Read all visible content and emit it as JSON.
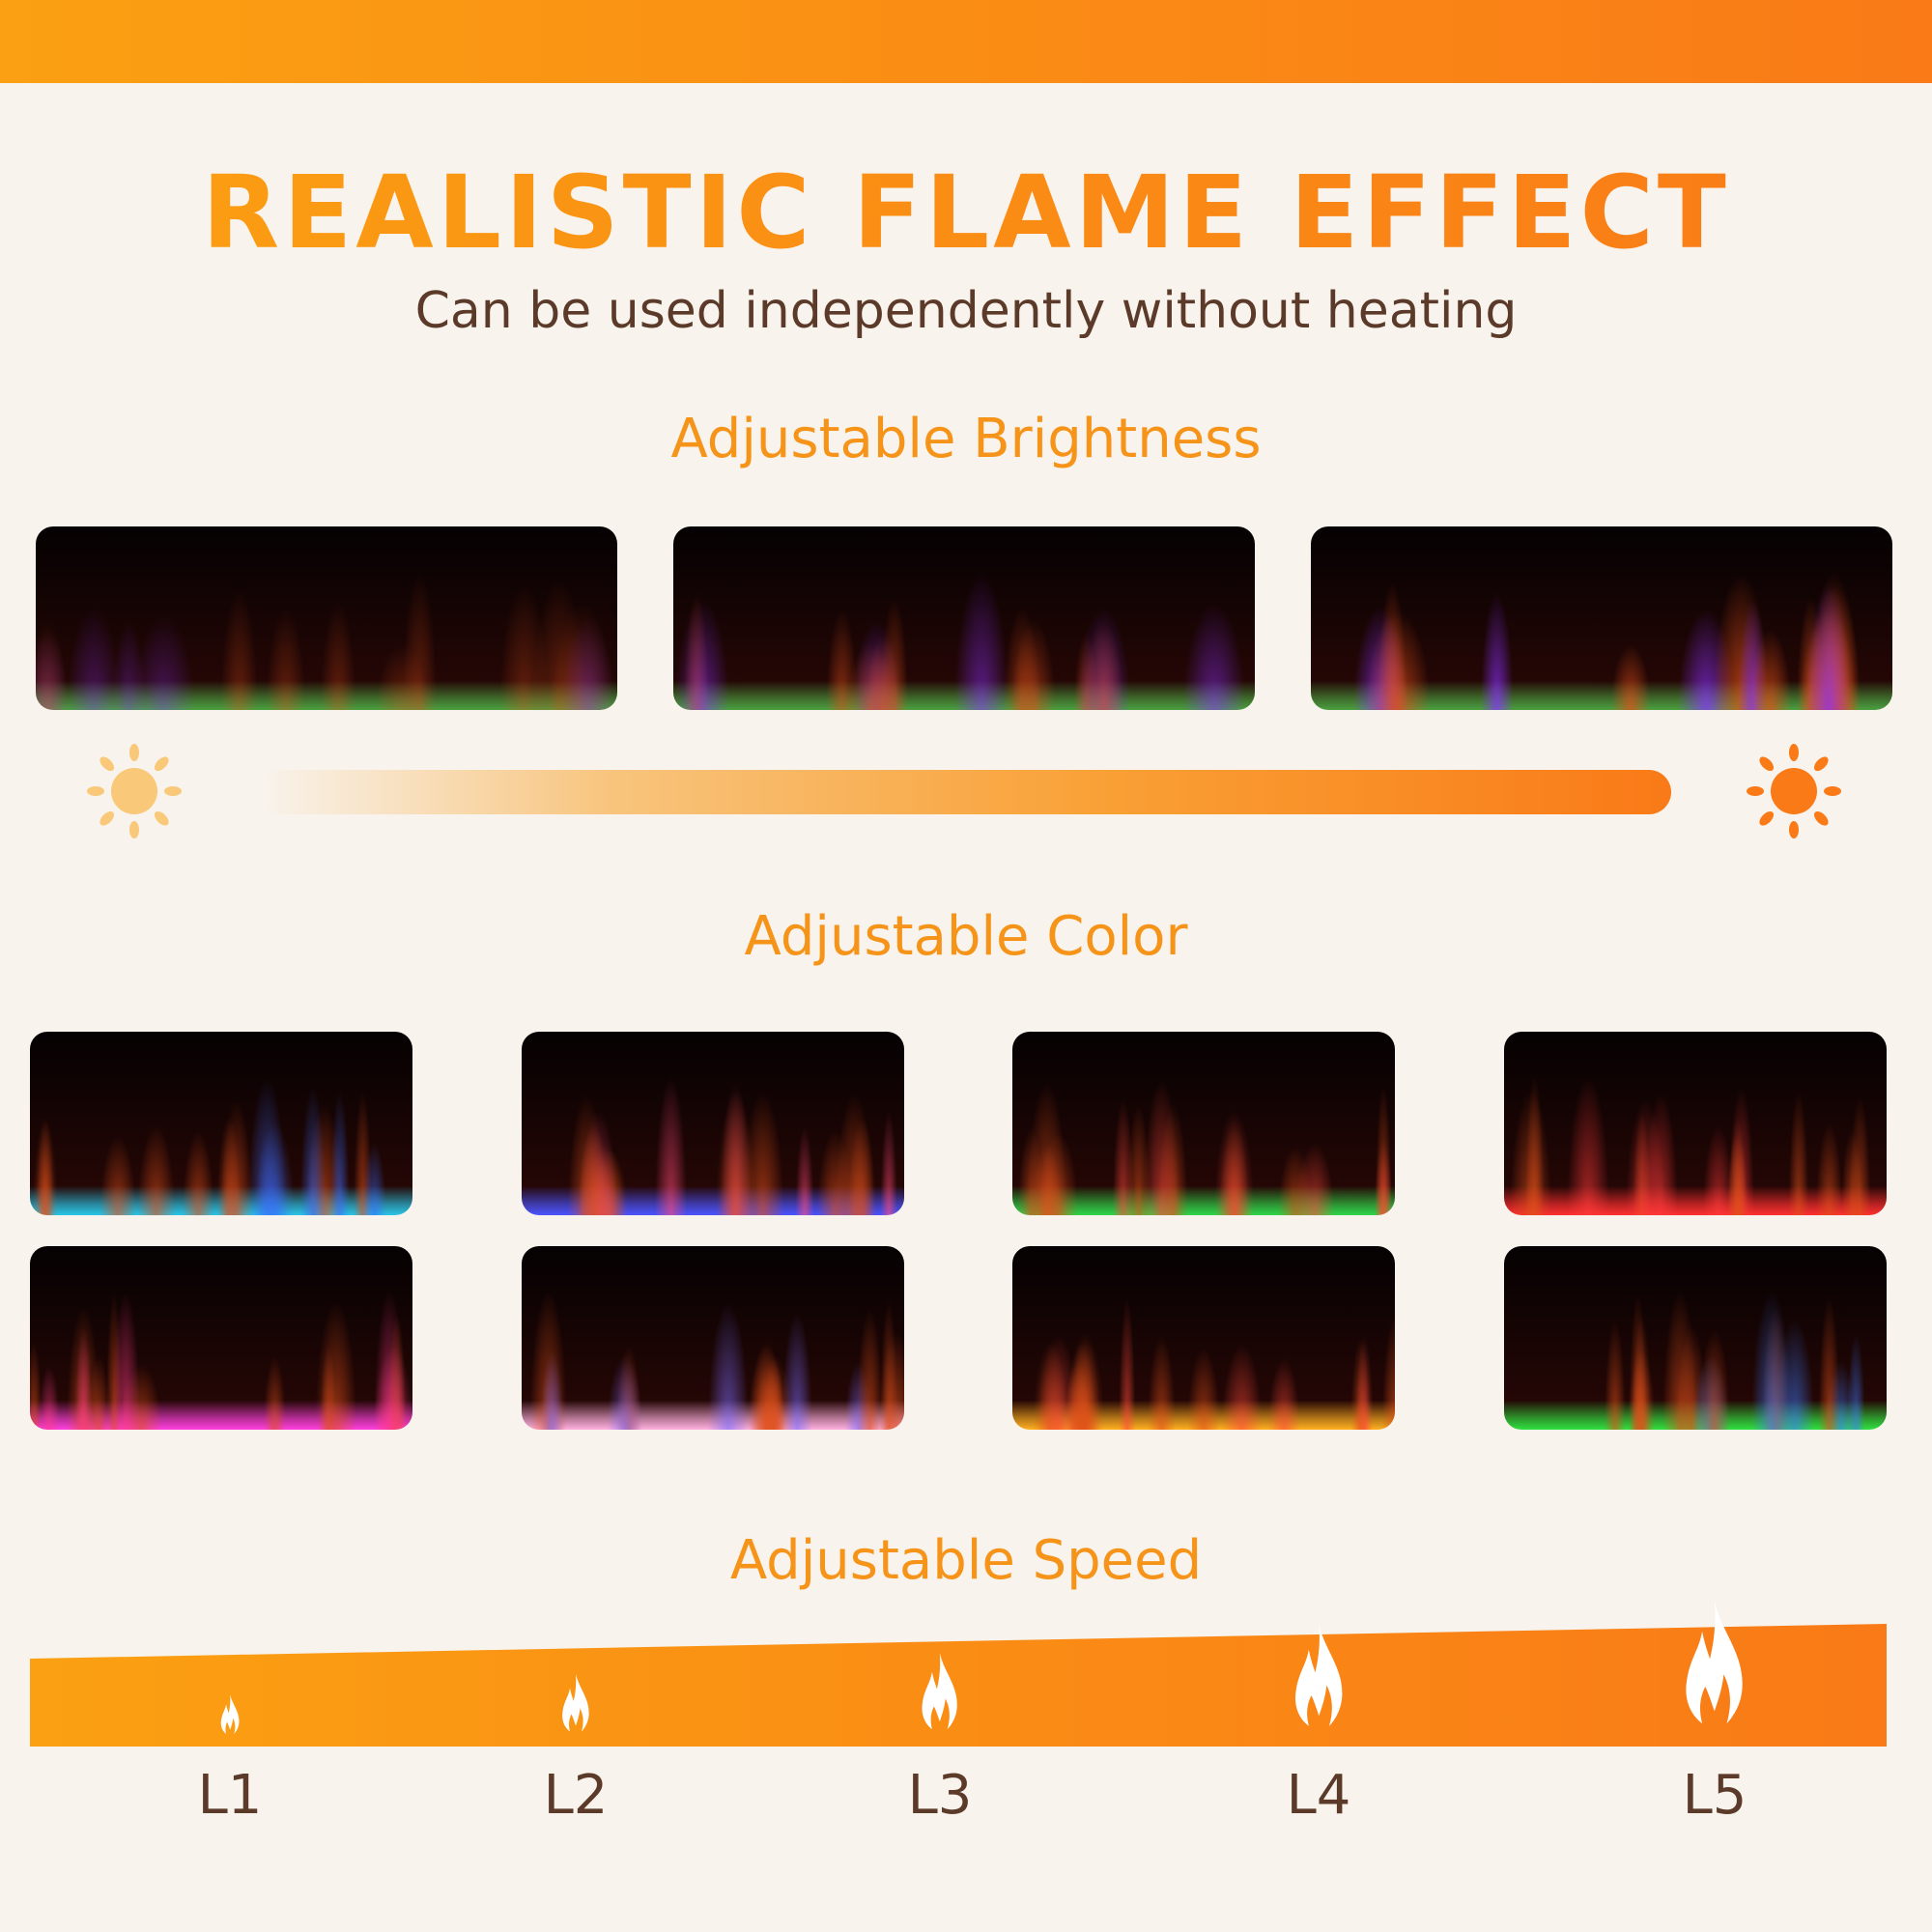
{
  "header": {
    "title": "REALISTIC FLAME EFFECT",
    "subtitle": "Can be used independently without heating"
  },
  "brightness": {
    "heading": "Adjustable Brightness",
    "levels": [
      "low",
      "medium",
      "high"
    ],
    "min_icon": "sun-dim-icon",
    "max_icon": "sun-bright-icon"
  },
  "color": {
    "heading": "Adjustable Color",
    "variants": [
      {
        "flame": "#3b6cff",
        "bed": "#29c6e8"
      },
      {
        "flame": "#ff4a7a",
        "bed": "#4a54ff"
      },
      {
        "flame": "#ff4a3a",
        "bed": "#2fd64a"
      },
      {
        "flame": "#ff3a3a",
        "bed": "#ff3030"
      },
      {
        "flame": "#ff3a8a",
        "bed": "#ff40e0"
      },
      {
        "flame": "#7a6cff",
        "bed": "#ffb0e0"
      },
      {
        "flame": "#ff4a3a",
        "bed": "#ffb020"
      },
      {
        "flame": "#3a7cff",
        "bed": "#30e040"
      }
    ]
  },
  "speed": {
    "heading": "Adjustable Speed",
    "levels": [
      "L1",
      "L2",
      "L3",
      "L4",
      "L5"
    ],
    "icon": "flame-icon"
  },
  "colors": {
    "accent_start": "#fba012",
    "accent_end": "#f97a17",
    "text_dark": "#5b3a2a",
    "background": "#f8f3ec"
  }
}
